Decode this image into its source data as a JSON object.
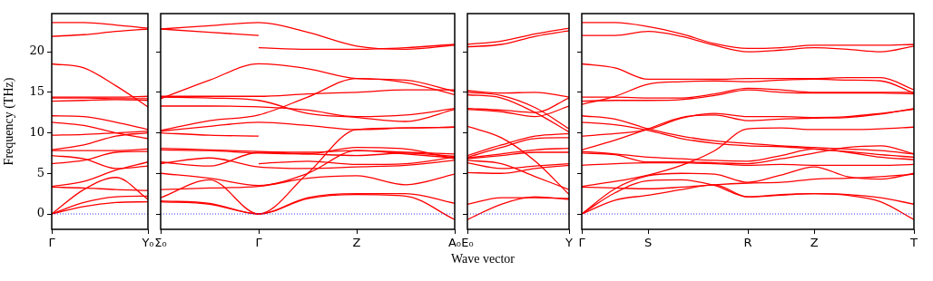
{
  "chart_data": [
    {
      "type": "line",
      "ylabel": "Frequency (THz)",
      "categories": [
        "Γ",
        null,
        null,
        "Y₀"
      ],
      "ylim": [
        -1.9,
        24.7
      ],
      "yticks": [
        0,
        5,
        10,
        15,
        20
      ],
      "legend": false,
      "marker": "none",
      "line_style": "solid",
      "ref_lines": [
        {
          "axis": "y",
          "value": 0,
          "color": "#0000ff",
          "line_style": "dotted"
        }
      ],
      "series": [
        {
          "color": "#ff0000",
          "values": [
            23.6,
            23.6,
            23.3,
            22.9
          ]
        },
        {
          "color": "#ff0000",
          "values": [
            21.9,
            22.1,
            22.5,
            22.8
          ]
        },
        {
          "color": "#ff0000",
          "values": [
            18.5,
            18.0,
            15.8,
            13.2
          ]
        },
        {
          "color": "#ff0000",
          "values": [
            14.4,
            14.4,
            14.4,
            14.5
          ]
        },
        {
          "color": "#ff0000",
          "values": [
            14.3,
            14.3,
            14.2,
            14.2
          ]
        },
        {
          "color": "#ff0000",
          "values": [
            13.9,
            14.0,
            14.1,
            14.0
          ]
        },
        {
          "color": "#ff0000",
          "values": [
            12.1,
            12.0,
            11.3,
            10.4
          ]
        },
        {
          "color": "#ff0000",
          "values": [
            11.3,
            10.9,
            10.0,
            9.3
          ]
        },
        {
          "color": "#ff0000",
          "values": [
            9.7,
            9.8,
            10.0,
            10.2
          ]
        },
        {
          "color": "#ff0000",
          "values": [
            7.9,
            8.5,
            9.6,
            10.0
          ]
        },
        {
          "color": "#ff0000",
          "values": [
            7.8,
            7.8,
            7.8,
            8.0
          ]
        },
        {
          "color": "#ff0000",
          "values": [
            7.2,
            6.8,
            5.6,
            5.9
          ]
        },
        {
          "color": "#ff0000",
          "values": [
            6.2,
            6.6,
            7.6,
            7.7
          ]
        },
        {
          "color": "#ff0000",
          "values": [
            3.4,
            4.0,
            5.4,
            6.4
          ]
        },
        {
          "color": "#ff0000",
          "values": [
            3.3,
            3.2,
            3.0,
            2.9
          ]
        },
        {
          "color": "#ff0000",
          "values": [
            0,
            3.0,
            4.5,
            1.8
          ]
        },
        {
          "color": "#ff0000",
          "values": [
            0,
            1.4,
            2.1,
            2.2
          ]
        },
        {
          "color": "#ff0000",
          "values": [
            0,
            0.9,
            1.4,
            1.5
          ]
        }
      ]
    },
    {
      "type": "line",
      "categories": [
        "Σ₀",
        null,
        "Γ",
        null,
        "Z",
        null,
        "A₀"
      ],
      "ylim": [
        -1.9,
        24.7
      ],
      "yticks": [
        0,
        5,
        10,
        15,
        20
      ],
      "tick_labels": "x",
      "legend": false,
      "marker": "none",
      "line_style": "solid",
      "ref_lines": [
        {
          "axis": "y",
          "value": 0,
          "color": "#0000ff",
          "line_style": "dotted"
        }
      ],
      "series": [
        {
          "color": "#ff0000",
          "values": [
            22.8,
            23.2,
            23.6,
            22.4,
            20.7,
            20.3,
            20.8
          ]
        },
        {
          "color": "#ff0000",
          "values": [
            22.8,
            22.4,
            22.0,
            null,
            null,
            null,
            null
          ]
        },
        {
          "color": "#ff0000",
          "values": [
            null,
            null,
            20.5,
            20.3,
            20.3,
            20.5,
            20.9
          ]
        },
        {
          "color": "#ff0000",
          "values": [
            14.2,
            16.5,
            18.5,
            17.9,
            16.7,
            16.5,
            15.1
          ]
        },
        {
          "color": "#ff0000",
          "values": [
            14.5,
            14.5,
            14.5,
            14.8,
            15.0,
            15.3,
            15.3
          ]
        },
        {
          "color": "#ff0000",
          "values": [
            14.4,
            14.3,
            14.0,
            12.4,
            11.9,
            11.4,
            12.9
          ]
        },
        {
          "color": "#ff0000",
          "values": [
            13.3,
            13.3,
            13.2,
            12.8,
            12.0,
            12.2,
            13.0
          ]
        },
        {
          "color": "#ff0000",
          "values": [
            10.3,
            11.5,
            12.2,
            14.4,
            16.7,
            16.2,
            14.7
          ]
        },
        {
          "color": "#ff0000",
          "values": [
            10.2,
            10.8,
            11.3,
            10.9,
            10.4,
            10.6,
            10.7
          ]
        },
        {
          "color": "#ff0000",
          "values": [
            10.0,
            9.7,
            9.6,
            null,
            null,
            null,
            null
          ]
        },
        {
          "color": "#ff0000",
          "values": [
            8.1,
            7.9,
            7.7,
            7.6,
            7.8,
            7.6,
            7.4
          ]
        },
        {
          "color": "#ff0000",
          "values": [
            7.9,
            7.8,
            7.5,
            7.4,
            8.2,
            8.0,
            6.8
          ]
        },
        {
          "color": "#ff0000",
          "values": [
            6.4,
            5.9,
            7.6,
            7.4,
            7.2,
            7.5,
            7.1
          ]
        },
        {
          "color": "#ff0000",
          "values": [
            6.2,
            6.9,
            5.8,
            5.6,
            5.8,
            6.0,
            6.6
          ]
        },
        {
          "color": "#ff0000",
          "values": [
            null,
            null,
            6.2,
            6.5,
            6.1,
            6.2,
            7.0
          ]
        },
        {
          "color": "#ff0000",
          "values": [
            5.0,
            4.4,
            3.5,
            5.0,
            7.8,
            7.4,
            6.9
          ]
        },
        {
          "color": "#ff0000",
          "values": [
            3.0,
            3.2,
            3.4,
            4.4,
            4.7,
            3.6,
            4.9
          ]
        },
        {
          "color": "#ff0000",
          "values": [
            2.0,
            4.2,
            0,
            5.0,
            10.4,
            10.6,
            10.7
          ]
        },
        {
          "color": "#ff0000",
          "values": [
            1.6,
            1.3,
            0,
            2.0,
            2.5,
            2.5,
            1.3
          ]
        },
        {
          "color": "#ff0000",
          "values": [
            1.5,
            1.2,
            0,
            1.9,
            2.4,
            2.2,
            -0.7
          ]
        }
      ]
    },
    {
      "type": "line",
      "xlabel": "Wave vector",
      "categories": [
        "E₀",
        null,
        null,
        "Y"
      ],
      "ylim": [
        -1.9,
        24.7
      ],
      "yticks": [
        0,
        5,
        10,
        15,
        20
      ],
      "tick_labels": "x",
      "legend": false,
      "marker": "none",
      "line_style": "solid",
      "ref_lines": [
        {
          "axis": "y",
          "value": 0,
          "color": "#0000ff",
          "line_style": "dotted"
        }
      ],
      "series": [
        {
          "color": "#ff0000",
          "values": [
            20.9,
            21.3,
            22.2,
            22.9
          ]
        },
        {
          "color": "#ff0000",
          "values": [
            20.6,
            20.9,
            21.9,
            22.6
          ]
        },
        {
          "color": "#ff0000",
          "values": [
            15.2,
            14.9,
            15.0,
            14.4
          ]
        },
        {
          "color": "#ff0000",
          "values": [
            15.0,
            14.6,
            13.1,
            10.5
          ]
        },
        {
          "color": "#ff0000",
          "values": [
            14.7,
            14.3,
            12.5,
            10.1
          ]
        },
        {
          "color": "#ff0000",
          "values": [
            13.0,
            12.8,
            12.5,
            14.3
          ]
        },
        {
          "color": "#ff0000",
          "values": [
            12.9,
            12.6,
            12.0,
            13.3
          ]
        },
        {
          "color": "#ff0000",
          "values": [
            10.8,
            9.4,
            6.5,
            2.4
          ]
        },
        {
          "color": "#ff0000",
          "values": [
            7.2,
            8.5,
            9.6,
            9.9
          ]
        },
        {
          "color": "#ff0000",
          "values": [
            7.0,
            8.2,
            9.3,
            9.4
          ]
        },
        {
          "color": "#ff0000",
          "values": [
            6.9,
            7.4,
            7.9,
            8.1
          ]
        },
        {
          "color": "#ff0000",
          "values": [
            6.8,
            7.2,
            7.6,
            7.6
          ]
        },
        {
          "color": "#ff0000",
          "values": [
            6.6,
            6.2,
            4.6,
            3.0
          ]
        },
        {
          "color": "#ff0000",
          "values": [
            6.3,
            5.6,
            5.9,
            6.2
          ]
        },
        {
          "color": "#ff0000",
          "values": [
            5.1,
            5.0,
            5.6,
            6.0
          ]
        },
        {
          "color": "#ff0000",
          "values": [
            1.2,
            2.0,
            2.0,
            1.9
          ]
        },
        {
          "color": "#ff0000",
          "values": [
            -0.7,
            1.2,
            2.1,
            1.8
          ]
        }
      ]
    },
    {
      "type": "line",
      "categories": [
        "Γ",
        null,
        "S",
        null,
        null,
        "R",
        null,
        "Z",
        null,
        null,
        "T"
      ],
      "ylim": [
        -1.9,
        24.7
      ],
      "yticks": [
        0,
        5,
        10,
        15,
        20
      ],
      "tick_labels": "x",
      "legend": false,
      "marker": "none",
      "line_style": "solid",
      "ref_lines": [
        {
          "axis": "y",
          "value": 0,
          "color": "#0000ff",
          "line_style": "dotted"
        }
      ],
      "series": [
        {
          "color": "#ff0000",
          "values": [
            23.6,
            23.6,
            23.1,
            22.2,
            21.0,
            20.4,
            20.5,
            20.8,
            20.8,
            20.8,
            20.9
          ]
        },
        {
          "color": "#ff0000",
          "values": [
            22.0,
            22.0,
            22.5,
            21.9,
            20.8,
            20.0,
            20.2,
            20.5,
            20.3,
            20.0,
            20.7
          ]
        },
        {
          "color": "#ff0000",
          "values": [
            18.5,
            18.0,
            16.6,
            16.6,
            16.6,
            16.7,
            16.7,
            16.7,
            16.8,
            16.8,
            15.3
          ]
        },
        {
          "color": "#ff0000",
          "values": [
            13.5,
            14.5,
            16.0,
            16.3,
            16.4,
            16.3,
            16.5,
            16.6,
            16.5,
            16.4,
            14.9
          ]
        },
        {
          "color": "#ff0000",
          "values": [
            14.4,
            14.4,
            14.3,
            14.3,
            14.8,
            15.5,
            15.3,
            15.0,
            15.0,
            15.0,
            15.0
          ]
        },
        {
          "color": "#ff0000",
          "values": [
            13.9,
            14.0,
            14.0,
            14.1,
            14.6,
            15.3,
            15.0,
            14.9,
            14.9,
            14.9,
            14.8
          ]
        },
        {
          "color": "#ff0000",
          "values": [
            12.1,
            11.7,
            10.5,
            9.6,
            9.0,
            8.7,
            8.4,
            8.2,
            8.0,
            7.8,
            7.4
          ]
        },
        {
          "color": "#ff0000",
          "values": [
            11.3,
            11.0,
            10.3,
            9.3,
            8.7,
            8.4,
            8.3,
            8.0,
            7.7,
            7.3,
            7.0
          ]
        },
        {
          "color": "#ff0000",
          "values": [
            9.6,
            9.9,
            10.4,
            11.8,
            12.4,
            12.0,
            12.0,
            11.9,
            12.0,
            12.4,
            12.9
          ]
        },
        {
          "color": "#ff0000",
          "values": [
            7.9,
            9.1,
            10.5,
            11.9,
            12.2,
            11.5,
            11.7,
            11.8,
            11.9,
            12.3,
            13.0
          ]
        },
        {
          "color": "#ff0000",
          "values": [
            7.7,
            7.4,
            7.0,
            6.8,
            6.6,
            6.5,
            7.2,
            8.0,
            7.6,
            7.0,
            6.7
          ]
        },
        {
          "color": "#ff0000",
          "values": [
            7.5,
            7.3,
            6.4,
            6.4,
            6.3,
            6.2,
            6.8,
            7.5,
            8.2,
            8.4,
            7.4
          ]
        },
        {
          "color": "#ff0000",
          "values": [
            6.0,
            6.2,
            6.3,
            6.3,
            6.2,
            6.0,
            6.1,
            6.0,
            6.0,
            6.0,
            6.1
          ]
        },
        {
          "color": "#ff0000",
          "values": [
            3.4,
            4.0,
            4.8,
            6.0,
            7.8,
            10.5,
            10.6,
            10.4,
            10.4,
            10.5,
            10.7
          ]
        },
        {
          "color": "#ff0000",
          "values": [
            3.3,
            3.2,
            3.1,
            3.3,
            3.6,
            3.8,
            3.9,
            4.3,
            4.4,
            4.6,
            4.9
          ]
        },
        {
          "color": "#ff0000",
          "values": [
            0,
            3.1,
            4.7,
            5.0,
            4.9,
            3.9,
            4.8,
            5.8,
            4.6,
            4.3,
            5.0
          ]
        },
        {
          "color": "#ff0000",
          "values": [
            0,
            2.6,
            4.1,
            4.2,
            3.5,
            2.1,
            2.4,
            2.5,
            2.4,
            2.0,
            1.2
          ]
        },
        {
          "color": "#ff0000",
          "values": [
            0,
            1.7,
            2.3,
            3.0,
            3.6,
            2.1,
            2.3,
            2.5,
            2.3,
            1.5,
            -0.7
          ]
        }
      ]
    }
  ]
}
